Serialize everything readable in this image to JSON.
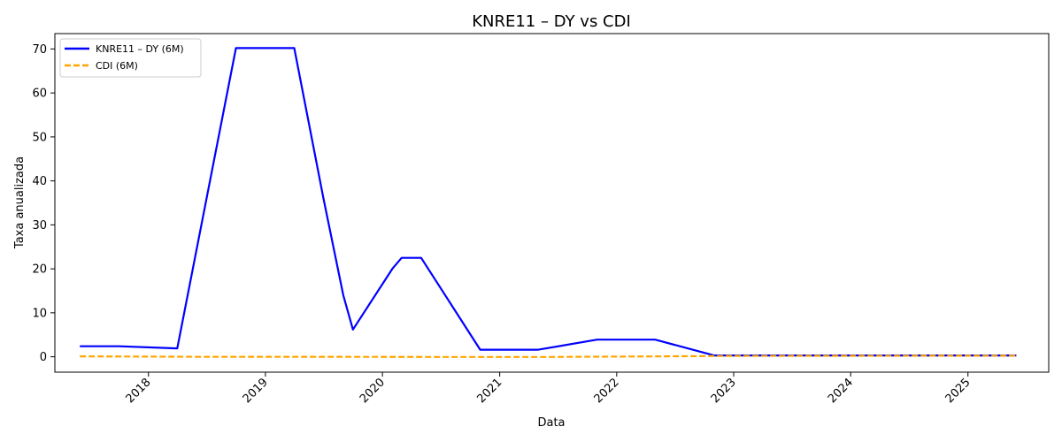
{
  "chart_data": {
    "type": "line",
    "title": "KNRE11 – DY vs CDI",
    "xlabel": "Data",
    "ylabel": "Taxa anualizada",
    "x_ticks": [
      "2018",
      "2019",
      "2020",
      "2021",
      "2022",
      "2023",
      "2024",
      "2025"
    ],
    "y_ticks": [
      0,
      10,
      20,
      30,
      40,
      50,
      60,
      70
    ],
    "xlim": [
      "2017-03-15",
      "2025-09-10"
    ],
    "ylim": [
      -3.5,
      73.5
    ],
    "grid": false,
    "legend": "top-left",
    "series": [
      {
        "name": "KNRE11 – DY (6M)",
        "color": "#0000ff",
        "style": "solid",
        "points": [
          [
            "2017-06-01",
            2.4
          ],
          [
            "2017-10-01",
            2.4
          ],
          [
            "2018-04-01",
            1.9
          ],
          [
            "2018-10-01",
            70.2
          ],
          [
            "2019-04-01",
            70.2
          ],
          [
            "2019-07-01",
            36
          ],
          [
            "2019-09-01",
            14
          ],
          [
            "2019-10-01",
            6.2
          ],
          [
            "2020-02-01",
            20
          ],
          [
            "2020-03-01",
            22.5
          ],
          [
            "2020-05-01",
            22.5
          ],
          [
            "2020-11-01",
            1.6
          ],
          [
            "2021-05-01",
            1.6
          ],
          [
            "2021-11-01",
            3.9
          ],
          [
            "2022-05-01",
            3.9
          ],
          [
            "2022-11-01",
            0.3
          ],
          [
            "2025-06-01",
            0.3
          ]
        ]
      },
      {
        "name": "CDI (6M)",
        "color": "#ffa500",
        "style": "dashed",
        "points": [
          [
            "2017-06-01",
            0.1
          ],
          [
            "2018-06-01",
            0.0
          ],
          [
            "2019-06-01",
            0.0
          ],
          [
            "2020-06-01",
            -0.05
          ],
          [
            "2021-06-01",
            -0.05
          ],
          [
            "2022-06-01",
            0.1
          ],
          [
            "2023-01-01",
            0.2
          ],
          [
            "2025-06-01",
            0.25
          ]
        ]
      }
    ]
  }
}
